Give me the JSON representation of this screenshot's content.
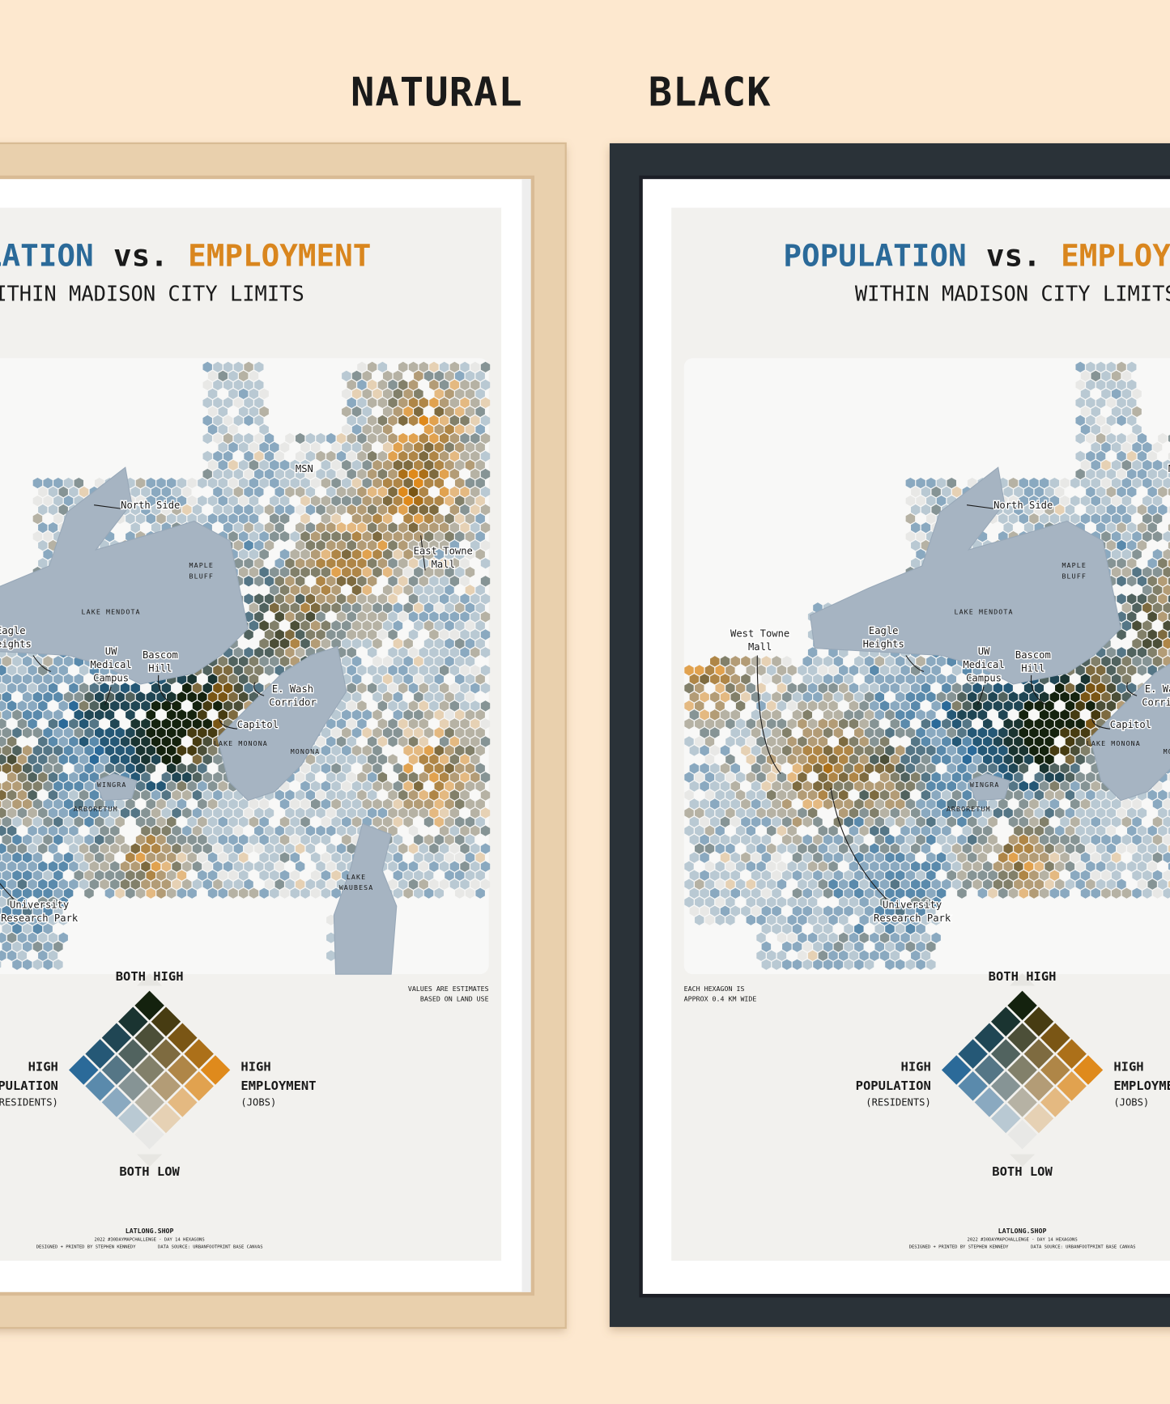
{
  "labels": {
    "natural": "NATURAL",
    "black": "BLACK"
  },
  "poster": {
    "title": {
      "population": "POPULATION",
      "vs": "vs.",
      "employment": "EMPLOYMENT"
    },
    "subtitle": "WITHIN MADISON CITY LIMITS",
    "places": [
      {
        "lines": [
          "North Side"
        ]
      },
      {
        "lines": [
          "MSN"
        ]
      },
      {
        "lines": [
          "East Towne",
          "Mall"
        ]
      },
      {
        "lines": [
          "MAPLE",
          "BLUFF"
        ]
      },
      {
        "lines": [
          "LAKE MENDOTA"
        ]
      },
      {
        "lines": [
          "Eagle",
          "Heights"
        ]
      },
      {
        "lines": [
          "UW",
          "Medical",
          "Campus"
        ]
      },
      {
        "lines": [
          "Bascom",
          "Hill"
        ]
      },
      {
        "lines": [
          "E. Wash",
          "Corridor"
        ]
      },
      {
        "lines": [
          "Capitol"
        ]
      },
      {
        "lines": [
          "LAKE MONONA"
        ]
      },
      {
        "lines": [
          "MONONA"
        ]
      },
      {
        "lines": [
          "WINGRA"
        ]
      },
      {
        "lines": [
          "ARBORETUM"
        ]
      },
      {
        "lines": [
          "University",
          "Research Park"
        ]
      },
      {
        "lines": [
          "LAKE",
          "WAUBESA"
        ]
      },
      {
        "lines": [
          "West Towne",
          "Mall"
        ]
      }
    ],
    "notes": {
      "estimates": [
        "VALUES ARE ESTIMATES",
        "BASED ON LAND USE"
      ],
      "hexagon": [
        "EACH HEXAGON IS",
        "APPROX 0.4 KM WIDE"
      ]
    },
    "legend": {
      "both_high": "BOTH HIGH",
      "both_low": "BOTH LOW",
      "high_population": [
        "HIGH",
        "POPULATION",
        "(RESIDENTS)"
      ],
      "high_employment": [
        "HIGH",
        "EMPLOYMENT",
        "(JOBS)"
      ]
    },
    "footer": {
      "brand": "LATLONG.SHOP",
      "challenge": "2022 #30DAYMAPCHALLENGE · DAY 14 HEXAGONS",
      "credit": "DESIGNED + PRINTED BY STEPHEN KENNEDY",
      "source": "DATA SOURCE: URBANFOOTPRINT BASE CANVAS"
    }
  }
}
